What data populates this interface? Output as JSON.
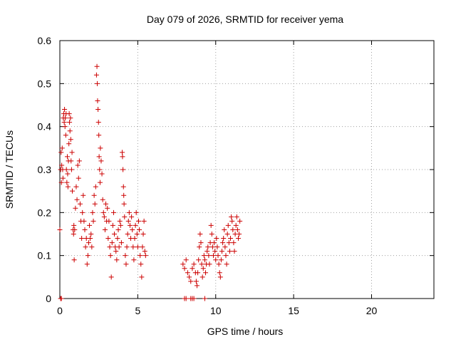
{
  "chart_data": {
    "type": "scatter",
    "title": "Day 079 of 2026, SRMTID for receiver yema",
    "xlabel": "GPS time / hours",
    "ylabel": "SRMTID / TECUs",
    "xlim": [
      0,
      24
    ],
    "ylim": [
      0,
      0.6
    ],
    "x_ticks": [
      0,
      5,
      10,
      15,
      20
    ],
    "x_tick_labels": [
      "0",
      "5",
      "10",
      "15",
      "20"
    ],
    "y_ticks": [
      0,
      0.1,
      0.2,
      0.3,
      0.4,
      0.5,
      0.6
    ],
    "y_tick_labels": [
      "0",
      "0.1",
      "0.2",
      "0.3",
      "0.4",
      "0.5",
      "0.6"
    ],
    "grid": true,
    "marker": "plus",
    "color": "#cc0000",
    "series": [
      {
        "points": [
          [
            0.0,
            0.16
          ],
          [
            0.05,
            0.3
          ],
          [
            0.08,
            0.34
          ],
          [
            0.1,
            0.27
          ],
          [
            0.12,
            0.31
          ],
          [
            0.15,
            0.35
          ],
          [
            0.18,
            0.3
          ],
          [
            0.2,
            0.28
          ],
          [
            0.22,
            0.42
          ],
          [
            0.25,
            0.43
          ],
          [
            0.28,
            0.41
          ],
          [
            0.3,
            0.44
          ],
          [
            0.33,
            0.4
          ],
          [
            0.35,
            0.42
          ],
          [
            0.38,
            0.38
          ],
          [
            0.4,
            0.43
          ],
          [
            0.42,
            0.3
          ],
          [
            0.45,
            0.27
          ],
          [
            0.48,
            0.33
          ],
          [
            0.5,
            0.29
          ],
          [
            0.52,
            0.26
          ],
          [
            0.55,
            0.32
          ],
          [
            0.58,
            0.36
          ],
          [
            0.6,
            0.43
          ],
          [
            0.62,
            0.41
          ],
          [
            0.65,
            0.39
          ],
          [
            0.68,
            0.42
          ],
          [
            0.7,
            0.37
          ],
          [
            0.72,
            0.32
          ],
          [
            0.75,
            0.3
          ],
          [
            0.78,
            0.34
          ],
          [
            0.8,
            0.25
          ],
          [
            0.85,
            0.16
          ],
          [
            0.88,
            0.15
          ],
          [
            0.9,
            0.17
          ],
          [
            0.92,
            0.09
          ],
          [
            0.95,
            0.16
          ],
          [
            1.0,
            0.21
          ],
          [
            1.05,
            0.26
          ],
          [
            1.1,
            0.23
          ],
          [
            1.15,
            0.31
          ],
          [
            1.2,
            0.28
          ],
          [
            1.25,
            0.32
          ],
          [
            1.3,
            0.22
          ],
          [
            1.35,
            0.18
          ],
          [
            1.4,
            0.14
          ],
          [
            1.45,
            0.2
          ],
          [
            1.5,
            0.24
          ],
          [
            1.55,
            0.18
          ],
          [
            1.6,
            0.16
          ],
          [
            1.65,
            0.12
          ],
          [
            1.7,
            0.14
          ],
          [
            1.75,
            0.08
          ],
          [
            1.8,
            0.1
          ],
          [
            1.85,
            0.13
          ],
          [
            1.9,
            0.17
          ],
          [
            1.95,
            0.14
          ],
          [
            2.0,
            0.15
          ],
          [
            2.05,
            0.12
          ],
          [
            2.1,
            0.2
          ],
          [
            2.15,
            0.18
          ],
          [
            2.2,
            0.24
          ],
          [
            2.25,
            0.22
          ],
          [
            2.3,
            0.26
          ],
          [
            2.35,
            0.52
          ],
          [
            2.38,
            0.54
          ],
          [
            2.4,
            0.5
          ],
          [
            2.42,
            0.46
          ],
          [
            2.45,
            0.44
          ],
          [
            2.48,
            0.41
          ],
          [
            2.5,
            0.38
          ],
          [
            2.52,
            0.33
          ],
          [
            2.55,
            0.3
          ],
          [
            2.58,
            0.27
          ],
          [
            2.6,
            0.35
          ],
          [
            2.65,
            0.32
          ],
          [
            2.7,
            0.29
          ],
          [
            2.75,
            0.23
          ],
          [
            2.8,
            0.2
          ],
          [
            2.85,
            0.19
          ],
          [
            2.9,
            0.16
          ],
          [
            2.95,
            0.22
          ],
          [
            3.0,
            0.18
          ],
          [
            3.05,
            0.21
          ],
          [
            3.1,
            0.14
          ],
          [
            3.15,
            0.18
          ],
          [
            3.2,
            0.12
          ],
          [
            3.25,
            0.1
          ],
          [
            3.3,
            0.05
          ],
          [
            3.35,
            0.13
          ],
          [
            3.4,
            0.17
          ],
          [
            3.45,
            0.2
          ],
          [
            3.5,
            0.15
          ],
          [
            3.55,
            0.12
          ],
          [
            3.6,
            0.11
          ],
          [
            3.65,
            0.09
          ],
          [
            3.7,
            0.14
          ],
          [
            3.75,
            0.16
          ],
          [
            3.8,
            0.12
          ],
          [
            3.85,
            0.18
          ],
          [
            3.9,
            0.17
          ],
          [
            3.95,
            0.13
          ],
          [
            4.0,
            0.34
          ],
          [
            4.02,
            0.33
          ],
          [
            4.05,
            0.3
          ],
          [
            4.08,
            0.26
          ],
          [
            4.1,
            0.24
          ],
          [
            4.12,
            0.22
          ],
          [
            4.15,
            0.19
          ],
          [
            4.2,
            0.1
          ],
          [
            4.25,
            0.08
          ],
          [
            4.3,
            0.12
          ],
          [
            4.35,
            0.15
          ],
          [
            4.4,
            0.18
          ],
          [
            4.45,
            0.2
          ],
          [
            4.5,
            0.17
          ],
          [
            4.55,
            0.14
          ],
          [
            4.6,
            0.19
          ],
          [
            4.65,
            0.16
          ],
          [
            4.7,
            0.12
          ],
          [
            4.75,
            0.09
          ],
          [
            4.8,
            0.14
          ],
          [
            4.85,
            0.17
          ],
          [
            4.9,
            0.2
          ],
          [
            4.95,
            0.15
          ],
          [
            5.0,
            0.12
          ],
          [
            5.05,
            0.18
          ],
          [
            5.1,
            0.16
          ],
          [
            5.15,
            0.1
          ],
          [
            5.2,
            0.08
          ],
          [
            5.25,
            0.05
          ],
          [
            5.3,
            0.12
          ],
          [
            5.35,
            0.15
          ],
          [
            5.4,
            0.18
          ],
          [
            5.45,
            0.11
          ],
          [
            5.5,
            0.1
          ],
          [
            0.05,
            0.0
          ],
          [
            0.1,
            0.0
          ],
          [
            8.0,
            0.0
          ],
          [
            8.1,
            0.0
          ],
          [
            8.4,
            0.0
          ],
          [
            8.5,
            0.0
          ],
          [
            8.6,
            0.0
          ],
          [
            9.3,
            0.0
          ],
          [
            7.9,
            0.08
          ],
          [
            8.0,
            0.07
          ],
          [
            8.1,
            0.09
          ],
          [
            8.2,
            0.06
          ],
          [
            8.3,
            0.05
          ],
          [
            8.4,
            0.04
          ],
          [
            8.5,
            0.07
          ],
          [
            8.6,
            0.08
          ],
          [
            8.7,
            0.06
          ],
          [
            8.75,
            0.04
          ],
          [
            8.8,
            0.03
          ],
          [
            8.85,
            0.06
          ],
          [
            8.9,
            0.09
          ],
          [
            8.95,
            0.12
          ],
          [
            9.0,
            0.15
          ],
          [
            9.05,
            0.13
          ],
          [
            9.1,
            0.08
          ],
          [
            9.15,
            0.05
          ],
          [
            9.2,
            0.07
          ],
          [
            9.25,
            0.1
          ],
          [
            9.3,
            0.09
          ],
          [
            9.35,
            0.06
          ],
          [
            9.4,
            0.08
          ],
          [
            9.45,
            0.11
          ],
          [
            9.5,
            0.12
          ],
          [
            9.55,
            0.1
          ],
          [
            9.6,
            0.08
          ],
          [
            9.65,
            0.13
          ],
          [
            9.7,
            0.17
          ],
          [
            9.75,
            0.15
          ],
          [
            9.8,
            0.12
          ],
          [
            9.85,
            0.1
          ],
          [
            9.9,
            0.13
          ],
          [
            9.95,
            0.11
          ],
          [
            10.0,
            0.09
          ],
          [
            10.05,
            0.14
          ],
          [
            10.1,
            0.12
          ],
          [
            10.15,
            0.1
          ],
          [
            10.2,
            0.08
          ],
          [
            10.25,
            0.06
          ],
          [
            10.3,
            0.05
          ],
          [
            10.35,
            0.09
          ],
          [
            10.4,
            0.11
          ],
          [
            10.45,
            0.13
          ],
          [
            10.5,
            0.14
          ],
          [
            10.55,
            0.16
          ],
          [
            10.6,
            0.12
          ],
          [
            10.65,
            0.1
          ],
          [
            10.7,
            0.08
          ],
          [
            10.75,
            0.15
          ],
          [
            10.8,
            0.17
          ],
          [
            10.85,
            0.13
          ],
          [
            10.9,
            0.11
          ],
          [
            10.95,
            0.14
          ],
          [
            11.0,
            0.19
          ],
          [
            11.05,
            0.18
          ],
          [
            11.1,
            0.16
          ],
          [
            11.15,
            0.13
          ],
          [
            11.2,
            0.11
          ],
          [
            11.25,
            0.15
          ],
          [
            11.3,
            0.17
          ],
          [
            11.35,
            0.19
          ],
          [
            11.4,
            0.16
          ],
          [
            11.45,
            0.14
          ],
          [
            11.5,
            0.15
          ],
          [
            11.55,
            0.18
          ]
        ]
      }
    ]
  }
}
